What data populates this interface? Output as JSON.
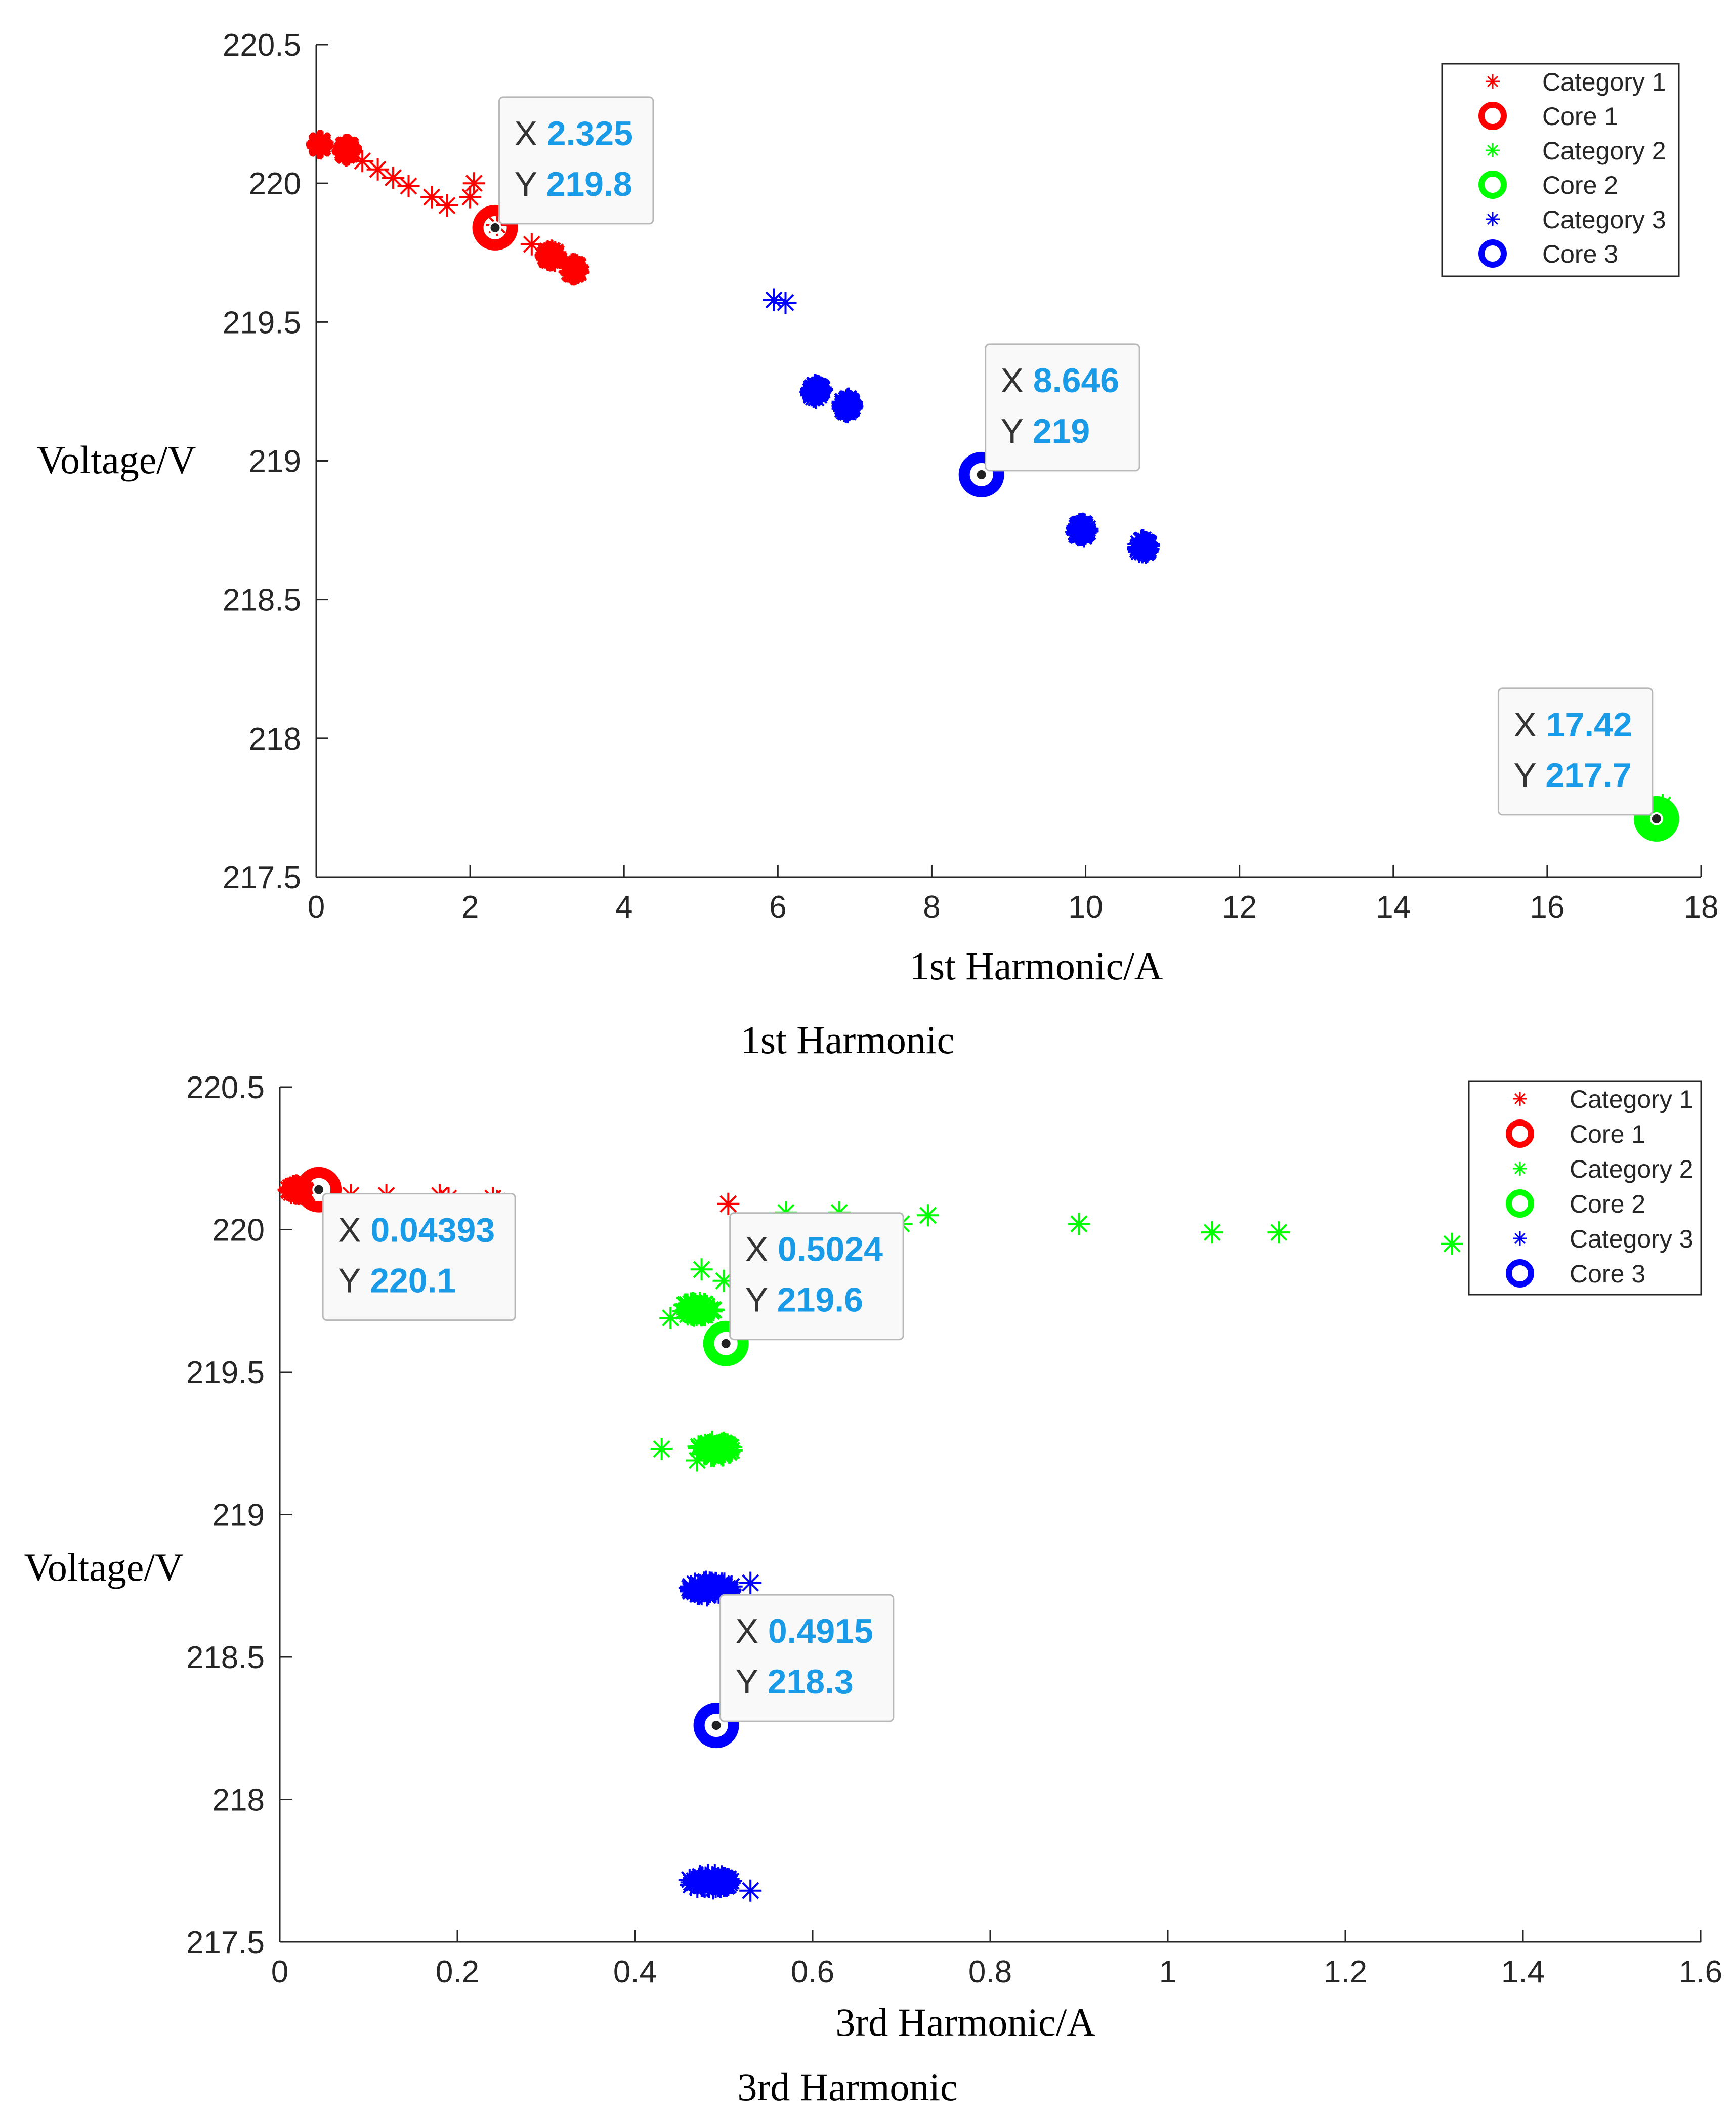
{
  "chart_data": [
    {
      "type": "scatter",
      "title": "",
      "caption": "1st Harmonic",
      "xlabel": "1st Harmonic/A",
      "ylabel": "Voltage/V",
      "xlim": [
        0,
        18
      ],
      "ylim": [
        217.5,
        220.5
      ],
      "xticks": [
        "0",
        "2",
        "4",
        "6",
        "8",
        "10",
        "12",
        "14",
        "16",
        "18"
      ],
      "xtick_values": [
        0,
        2,
        4,
        6,
        8,
        10,
        12,
        14,
        16,
        18
      ],
      "yticks": [
        "217.5",
        "218",
        "218.5",
        "219",
        "219.5",
        "220",
        "220.5"
      ],
      "ytick_values": [
        217.5,
        218,
        218.5,
        219,
        219.5,
        220,
        220.5
      ],
      "grid": false,
      "legend_position": "top-right",
      "legend": [
        "Category 1",
        "Core 1",
        "Category 2",
        "Core 2",
        "Category 3",
        "Core 3"
      ],
      "colors": {
        "cat1": "#ff0000",
        "cat2": "#00ff00",
        "cat3": "#0000ff"
      },
      "series": [
        {
          "name": "Category 1",
          "kind": "points",
          "color": "#ff0000",
          "points": [
            [
              0.05,
              220.14
            ],
            [
              0.35,
              220.12
            ],
            [
              0.6,
              220.08
            ],
            [
              0.8,
              220.05
            ],
            [
              1.0,
              220.02
            ],
            [
              1.2,
              219.99
            ],
            [
              1.5,
              219.95
            ],
            [
              1.7,
              219.92
            ],
            [
              2.05,
              220.0
            ],
            [
              2.0,
              219.95
            ],
            [
              2.35,
              219.85
            ],
            [
              2.8,
              219.78
            ],
            [
              3.0,
              219.75
            ],
            [
              3.1,
              219.72
            ],
            [
              3.3,
              219.7
            ],
            [
              3.4,
              219.68
            ]
          ],
          "clusters": [
            [
              0.05,
              220.14,
              0.08,
              0.03
            ],
            [
              0.4,
              220.12,
              0.12,
              0.04
            ],
            [
              3.05,
              219.74,
              0.14,
              0.04
            ],
            [
              3.35,
              219.69,
              0.14,
              0.04
            ]
          ]
        },
        {
          "name": "Category 2",
          "kind": "points",
          "color": "#00ff00",
          "points": [
            [
              17.4,
              217.72
            ],
            [
              17.5,
              217.76
            ]
          ],
          "clusters": [
            [
              17.42,
              217.71,
              0.2,
              0.06
            ]
          ]
        },
        {
          "name": "Category 3",
          "kind": "points",
          "color": "#0000ff",
          "points": [
            [
              5.95,
              219.58
            ],
            [
              6.1,
              219.57
            ]
          ],
          "clusters": [
            [
              6.5,
              219.25,
              0.16,
              0.05
            ],
            [
              6.9,
              219.2,
              0.14,
              0.05
            ],
            [
              9.95,
              218.75,
              0.16,
              0.05
            ],
            [
              10.75,
              218.69,
              0.16,
              0.05
            ]
          ]
        },
        {
          "name": "Core 1",
          "kind": "core",
          "color": "#ff0000",
          "x": 2.325,
          "y": 219.84
        },
        {
          "name": "Core 2",
          "kind": "core",
          "color": "#00ff00",
          "x": 17.42,
          "y": 217.71
        },
        {
          "name": "Core 3",
          "kind": "core",
          "color": "#0000ff",
          "x": 8.646,
          "y": 218.95
        }
      ],
      "annotations": [
        {
          "x": 2.325,
          "y": 219.84,
          "xtext": "2.325",
          "ytext": "219.8",
          "placement": "upper-right"
        },
        {
          "x": 8.646,
          "y": 218.95,
          "xtext": "8.646",
          "ytext": "219",
          "placement": "upper-right"
        },
        {
          "x": 17.42,
          "y": 217.71,
          "xtext": "17.42",
          "ytext": "217.7",
          "placement": "upper-left"
        }
      ],
      "tip_labels": {
        "x": "X",
        "y": "Y"
      }
    },
    {
      "type": "scatter",
      "title": "",
      "caption": "3rd Harmonic",
      "xlabel": "3rd Harmonic/A",
      "ylabel": "Voltage/V",
      "xlim": [
        0,
        1.6
      ],
      "ylim": [
        217.5,
        220.5
      ],
      "xticks": [
        "0",
        "0.2",
        "0.4",
        "0.6",
        "0.8",
        "1",
        "1.2",
        "1.4",
        "1.6"
      ],
      "xtick_values": [
        0,
        0.2,
        0.4,
        0.6,
        0.8,
        1,
        1.2,
        1.4,
        1.6
      ],
      "yticks": [
        "217.5",
        "218",
        "218.5",
        "219",
        "219.5",
        "220",
        "220.5"
      ],
      "ytick_values": [
        217.5,
        218,
        218.5,
        219,
        219.5,
        220,
        220.5
      ],
      "grid": false,
      "legend_position": "top-right",
      "legend": [
        "Category 1",
        "Core 1",
        "Category 2",
        "Core 2",
        "Category 3",
        "Core 3"
      ],
      "colors": {
        "cat1": "#ff0000",
        "cat2": "#00ff00",
        "cat3": "#0000ff"
      },
      "series": [
        {
          "name": "Category 1",
          "kind": "points",
          "color": "#ff0000",
          "points": [
            [
              0.01,
              220.14
            ],
            [
              0.03,
              220.13
            ],
            [
              0.08,
              220.12
            ],
            [
              0.12,
              220.12
            ],
            [
              0.18,
              220.12
            ],
            [
              0.19,
              220.11
            ],
            [
              0.24,
              220.11
            ],
            [
              0.245,
              220.1
            ],
            [
              0.505,
              220.09
            ]
          ],
          "clusters": [
            [
              0.02,
              220.14,
              0.02,
              0.03
            ]
          ]
        },
        {
          "name": "Category 2",
          "kind": "points",
          "color": "#00ff00",
          "points": [
            [
              0.57,
              220.06
            ],
            [
              0.63,
              220.06
            ],
            [
              0.7,
              220.02
            ],
            [
              0.73,
              220.05
            ],
            [
              0.9,
              220.02
            ],
            [
              1.05,
              219.99
            ],
            [
              1.125,
              219.99
            ],
            [
              1.32,
              219.95
            ],
            [
              0.475,
              219.86
            ],
            [
              0.5,
              219.82
            ],
            [
              0.44,
              219.69
            ],
            [
              0.43,
              219.23
            ],
            [
              0.47,
              219.19
            ]
          ],
          "clusters": [
            [
              0.47,
              219.72,
              0.04,
              0.05
            ],
            [
              0.49,
              219.23,
              0.04,
              0.05
            ]
          ]
        },
        {
          "name": "Category 3",
          "kind": "points",
          "color": "#0000ff",
          "points": [
            [
              0.53,
              218.76
            ],
            [
              0.53,
              217.68
            ]
          ],
          "clusters": [
            [
              0.485,
              218.74,
              0.05,
              0.05
            ],
            [
              0.485,
              217.71,
              0.05,
              0.05
            ]
          ]
        },
        {
          "name": "Core 1",
          "kind": "core",
          "color": "#ff0000",
          "x": 0.04393,
          "y": 220.14
        },
        {
          "name": "Core 2",
          "kind": "core",
          "color": "#00ff00",
          "x": 0.5024,
          "y": 219.6
        },
        {
          "name": "Core 3",
          "kind": "core",
          "color": "#0000ff",
          "x": 0.4915,
          "y": 218.26
        }
      ],
      "annotations": [
        {
          "x": 0.04393,
          "y": 220.14,
          "xtext": "0.04393",
          "ytext": "220.1",
          "placement": "lower-right"
        },
        {
          "x": 0.5024,
          "y": 219.6,
          "xtext": "0.5024",
          "ytext": "219.6",
          "placement": "upper-right"
        },
        {
          "x": 0.4915,
          "y": 218.26,
          "xtext": "0.4915",
          "ytext": "218.3",
          "placement": "upper-right"
        }
      ],
      "tip_labels": {
        "x": "X",
        "y": "Y"
      }
    }
  ]
}
